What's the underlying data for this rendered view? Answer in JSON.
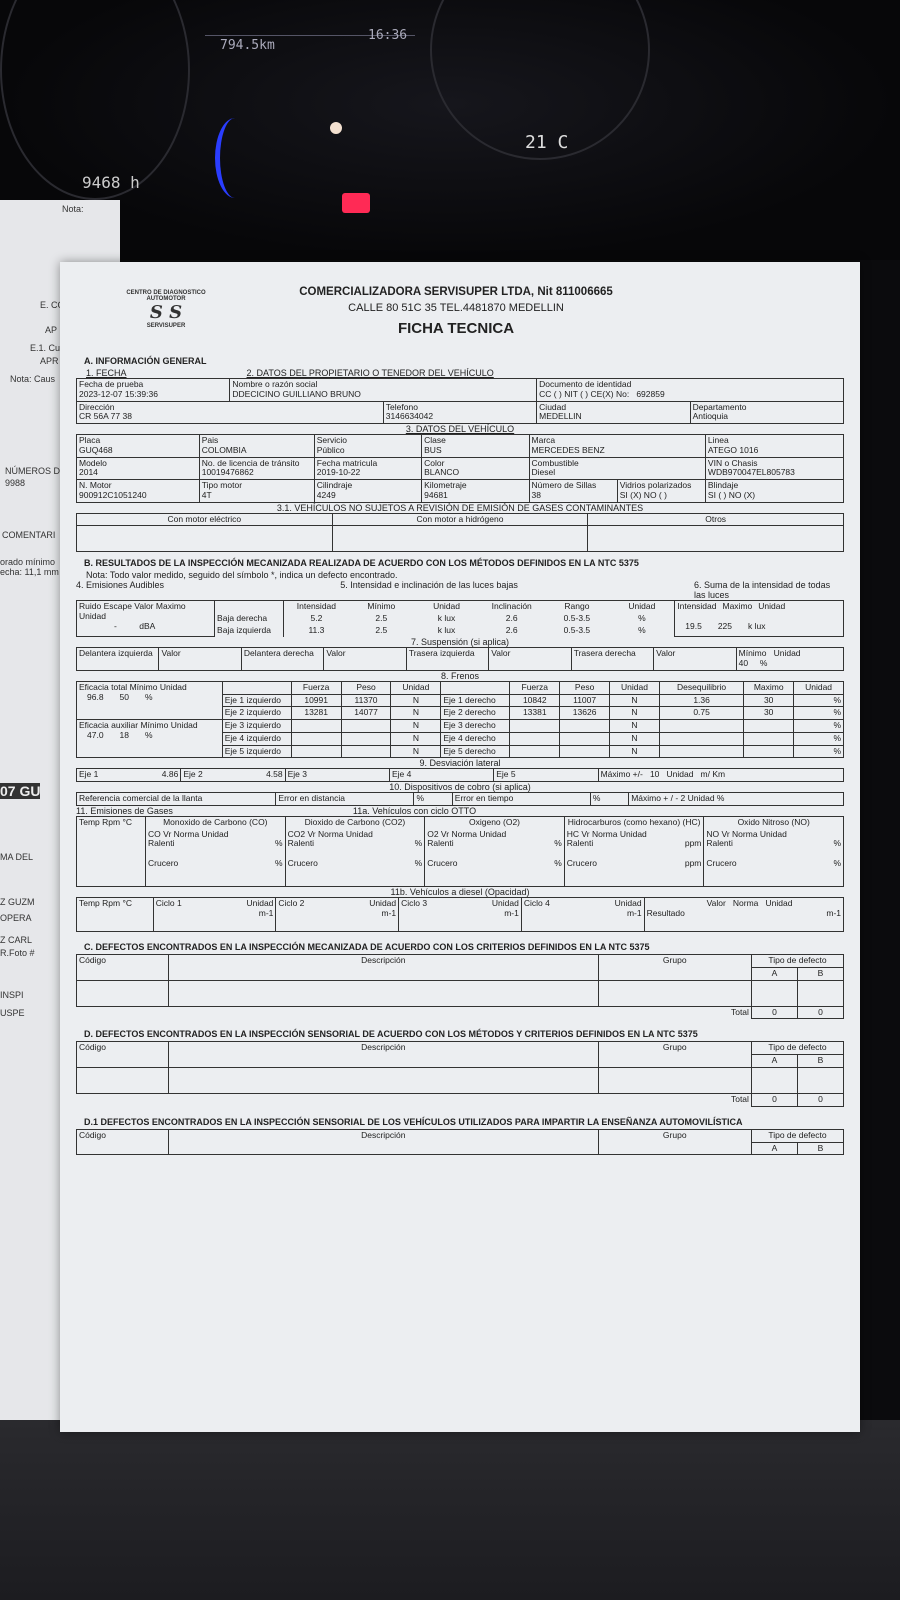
{
  "background": {
    "trip": "794.5km",
    "clock": "16:36",
    "temp": "21 C",
    "odo": "9468 h"
  },
  "back_sheet": {
    "labels": [
      "Nota:",
      "E. CO",
      "AP",
      "E.1. Cu",
      "APR",
      "Nota: Caus",
      "NÚMEROS D",
      "9988",
      "COMENTARI",
      "orado mínimo",
      "echa: 11,1 mm",
      "07 GU",
      "MA DEL",
      "Z GUZM",
      "OPERA",
      "Z CARL",
      "R.Foto #",
      "INSPI",
      "USPE"
    ]
  },
  "header": {
    "logo_text": "CENTRO DE DIAGNOSTICO AUTOMOTOR",
    "logo_brand": "SERVISUPER",
    "company": "COMERCIALIZADORA SERVISUPER LTDA, Nit 811006665",
    "address": "CALLE 80 51C 35 TEL.4481870 MEDELLIN",
    "title": "FICHA TECNICA"
  },
  "a": {
    "title": "A. INFORMACIÓN GENERAL",
    "s1": "1. FECHA",
    "s2": "2. DATOS DEL PROPIETARIO O TENEDOR DEL VEHÍCULO",
    "fecha_label": "Fecha de prueba",
    "fecha": "2023-12-07 15:39:36",
    "nombre_label": "Nombre o razón social",
    "nombre": "DDECICINO GUILLIANO BRUNO",
    "doc_label": "Documento de identidad",
    "doc_type": "CC ( )  NIT ( )  CE(X)  No:",
    "doc": "692859",
    "dir_label": "Dirección",
    "dir": "CR 56A 77 38",
    "tel_label": "Telefono",
    "tel": "3146634042",
    "ciudad_label": "Ciudad",
    "ciudad": "MEDELLIN",
    "depto_label": "Departamento",
    "depto": "Antioquia",
    "s3": "3. DATOS DEL VEHÍCULO",
    "placa_label": "Placa",
    "placa": "GUQ468",
    "pais_label": "Pais",
    "pais": "COLOMBIA",
    "servicio_label": "Servicio",
    "servicio": "Público",
    "clase_label": "Clase",
    "clase": "BUS",
    "marca_label": "Marca",
    "marca": "MERCEDES BENZ",
    "linea_label": "Linea",
    "linea": "ATEGO 1016",
    "modelo_label": "Modelo",
    "modelo": "2014",
    "licencia_label": "No. de licencia de tránsito",
    "licencia": "10019476862",
    "matricula_label": "Fecha matricula",
    "matricula": "2019-10-22",
    "color_label": "Color",
    "color": "BLANCO",
    "comb_label": "Combustible",
    "comb": "Diesel",
    "vin_label": "VIN o Chasis",
    "vin": "WDB970047EL805783",
    "motor_label": "N. Motor",
    "motor": "900912C1051240",
    "tipo_label": "Tipo motor",
    "tipo": "4T",
    "cil_label": "Cilindraje",
    "cil": "4249",
    "km_label": "Kilometraje",
    "km": "94681",
    "sillas_label": "Número de Sillas",
    "sillas": "38",
    "vidrios_label": "Vidrios polarizados",
    "vidrios": "SI (X)  NO ( )",
    "blindaje_label": "Blindaje",
    "blindaje": "SI ( )   NO (X)",
    "s31": "3.1. VEHÍCULOS NO SUJETOS A REVISIÓN DE EMISIÓN DE GASES CONTAMINANTES",
    "electrico": "Con motor eléctrico",
    "hidrogeno": "Con motor a hidrógeno",
    "otros": "Otros"
  },
  "b": {
    "title": "B. RESULTADOS DE LA INSPECCIÓN MECANIZADA REALIZADA DE ACUERDO CON LOS MÉTODOS DEFINIDOS EN LA NTC 5375",
    "nota": "Nota: Todo valor medido, seguido del símbolo *, indica un defecto encontrado.",
    "s4": "4. Emisiones Audibles",
    "s5": "5. Intensidad e inclinación de las luces bajas",
    "s6": "6. Suma de la intensidad de todas las luces",
    "ruido": "Ruido Escape",
    "valor": "Valor",
    "maximo": "Maximo",
    "unidad": "Unidad",
    "ruido_valor": "-",
    "ruido_unidad": "dBA",
    "luces_headers": [
      "Intensidad",
      "Mínimo",
      "Unidad",
      "Inclinación",
      "Rango",
      "Unidad"
    ],
    "luces": [
      {
        "label": "Baja derecha",
        "values": [
          "5.2",
          "2.5",
          "k lux",
          "2.6",
          "0.5-3.5",
          "%"
        ]
      },
      {
        "label": "Baja izquierda",
        "values": [
          "11.3",
          "2.5",
          "k lux",
          "2.6",
          "0.5-3.5",
          "%"
        ]
      }
    ],
    "suma_headers": [
      "Intensidad",
      "Maximo",
      "Unidad"
    ],
    "suma_values": [
      "19.5",
      "225",
      "k lux"
    ],
    "s7": "7. Suspensión (si aplica)",
    "susp": [
      "Delantera izquierda",
      "Delantera derecha",
      "Trasera izquierda",
      "Trasera derecha"
    ],
    "susp_min_label": "Mínimo",
    "susp_min": "40",
    "susp_unit": "%",
    "s8": "8. Frenos",
    "ef_total": "Eficacia total",
    "minimo": "Mínimo",
    "ef_total_vals": [
      "96.8",
      "50",
      "%"
    ],
    "ef_aux": "Eficacia auxiliar",
    "ef_aux_vals": [
      "47.0",
      "18",
      "%"
    ],
    "frenos_headers": [
      "Fuerza",
      "Peso",
      "Unidad"
    ],
    "deseq_headers": [
      "Desequilibrio",
      "Maximo",
      "Unidad"
    ],
    "frenos": [
      {
        "izq": "Eje 1 izquierdo",
        "iv": [
          "10991",
          "11370",
          "N"
        ],
        "der": "Eje 1 derecho",
        "dv": [
          "10842",
          "11007",
          "N"
        ],
        "deseq": [
          "1.36",
          "30",
          "%"
        ]
      },
      {
        "izq": "Eje 2 izquierdo",
        "iv": [
          "13281",
          "14077",
          "N"
        ],
        "der": "Eje 2 derecho",
        "dv": [
          "13381",
          "13626",
          "N"
        ],
        "deseq": [
          "0.75",
          "30",
          "%"
        ]
      },
      {
        "izq": "Eje 3 izquierdo",
        "iv": [
          "",
          "",
          "N"
        ],
        "der": "Eje 3 derecho",
        "dv": [
          "",
          "",
          "N"
        ],
        "deseq": [
          "",
          "",
          "%"
        ]
      },
      {
        "izq": "Eje 4 izquierdo",
        "iv": [
          "",
          "",
          "N"
        ],
        "der": "Eje 4 derecho",
        "dv": [
          "",
          "",
          "N"
        ],
        "deseq": [
          "",
          "",
          "%"
        ]
      },
      {
        "izq": "Eje 5 izquierdo",
        "iv": [
          "",
          "",
          "N"
        ],
        "der": "Eje 5 derecho",
        "dv": [
          "",
          "",
          "N"
        ],
        "deseq": [
          "",
          "",
          "%"
        ]
      }
    ],
    "s9": "9. Desviación lateral",
    "desv": [
      {
        "l": "Eje 1",
        "v": "4.86"
      },
      {
        "l": "Eje 2",
        "v": "4.58"
      },
      {
        "l": "Eje 3",
        "v": ""
      },
      {
        "l": "Eje 4",
        "v": ""
      },
      {
        "l": "Eje 5",
        "v": ""
      }
    ],
    "desv_max_label": "Máximo +/-",
    "desv_max": "10",
    "desv_unit_label": "Unidad",
    "desv_unit": "m/ Km",
    "s10": "10. Dispositivos de cobro (si aplica)",
    "ref_llanta": "Referencia comercial de la llanta",
    "err_dist": "Error en distancia",
    "err_tiempo": "Error en tiempo",
    "pct": "%",
    "cobro_max": "Máximo + / - 2   Unidad   %",
    "s11": "11. Emisiones de Gases",
    "s11a": "11a. Vehículos con ciclo OTTO",
    "temp_rpm": "Temp  Rpm °C",
    "gases": [
      {
        "h": "Monoxido de Carbono (CO)",
        "s": "CO   Vr   Norma Unidad",
        "u": "%"
      },
      {
        "h": "Dioxido de Carbono (CO2)",
        "s": "CO2   Vr   Norma Unidad",
        "u": "%"
      },
      {
        "h": "Oxigeno (O2)",
        "s": "O2   Vr   Norma Unidad",
        "u": "%"
      },
      {
        "h": "Hidrocarburos (como hexano) (HC)",
        "s": "HC   Vr   Norma Unidad",
        "u": "ppm"
      },
      {
        "h": "Oxido Nitroso (NO)",
        "s": "NO   Vr   Norma Unidad",
        "u": "%"
      }
    ],
    "ralenti": "Ralenti",
    "crucero": "Crucero",
    "s11b": "11b. Vehículos a diesel (Opacidad)",
    "ciclos": [
      "Ciclo 1",
      "Ciclo 2",
      "Ciclo 3",
      "Ciclo 4"
    ],
    "m1": "m-1",
    "resultado": "Resultado",
    "norma": "Norma"
  },
  "c": {
    "title": "C. DEFECTOS ENCONTRADOS EN LA INSPECCIÓN MECANIZADA DE ACUERDO CON LOS CRITERIOS DEFINIDOS EN LA NTC 5375",
    "codigo": "Código",
    "descripcion": "Descripción",
    "grupo": "Grupo",
    "tipo": "Tipo de defecto",
    "a": "A",
    "b": "B",
    "total": "Total",
    "total_a": "0",
    "total_b": "0"
  },
  "d": {
    "title": "D. DEFECTOS ENCONTRADOS EN LA INSPECCIÓN SENSORIAL DE ACUERDO CON LOS MÉTODOS Y CRITERIOS DEFINIDOS EN LA NTC 5375",
    "codigo": "Código",
    "descripcion": "Descripción",
    "grupo": "Grupo",
    "tipo": "Tipo de defecto",
    "a": "A",
    "b": "B",
    "total": "Total",
    "total_a": "0",
    "total_b": "0"
  },
  "d1": {
    "title": "D.1 DEFECTOS ENCONTRADOS EN LA INSPECCIÓN SENSORIAL DE LOS VEHÍCULOS UTILIZADOS PARA IMPARTIR LA ENSEÑANZA AUTOMOVILÍSTICA",
    "codigo": "Código",
    "descripcion": "Descripción",
    "grupo": "Grupo",
    "tipo": "Tipo de defecto",
    "a": "A",
    "b": "B"
  }
}
